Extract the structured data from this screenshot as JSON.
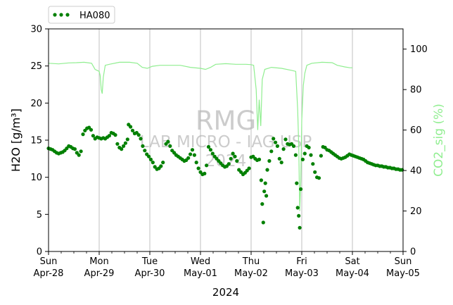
{
  "chart_data": {
    "type": "scatter",
    "xlabel": "2024",
    "ylabel_left": "H2O [g/m³]",
    "ylabel_right": "CO2_sig (%)",
    "ylim_left": [
      0,
      30
    ],
    "ylim_right": [
      0,
      110
    ],
    "y_ticks_left": [
      "0",
      "5",
      "10",
      "15",
      "20",
      "25",
      "30"
    ],
    "y_ticks_right": [
      "0",
      "20",
      "40",
      "60",
      "80",
      "100"
    ],
    "xlim": [
      "2024-04-28",
      "2024-05-05"
    ],
    "x_ticks": [
      {
        "day": "Sun",
        "date": "Apr-28"
      },
      {
        "day": "Mon",
        "date": "Apr-29"
      },
      {
        "day": "Tue",
        "date": "Apr-30"
      },
      {
        "day": "Wed",
        "date": "May-01"
      },
      {
        "day": "Thu",
        "date": "May-02"
      },
      {
        "day": "Fri",
        "date": "May-03"
      },
      {
        "day": "Sat",
        "date": "May-04"
      },
      {
        "day": "Sun",
        "date": "May-05"
      }
    ],
    "grid": "vertical at major ticks",
    "legend": {
      "position": "top-left, above plot",
      "label": "HA080"
    },
    "watermark": [
      "RMG",
      "LAB MICRO - IAG USP",
      "2024"
    ],
    "colors": {
      "h2o": "#008000",
      "co2": "#90ee90",
      "grid": "#b0b0b0",
      "watermark": "#cccccc"
    },
    "series": [
      {
        "name": "HA080",
        "axis": "left",
        "style": "dots",
        "x_unit": "days since Apr-28 00:00",
        "points": [
          [
            0.0,
            13.9
          ],
          [
            0.04,
            13.8
          ],
          [
            0.08,
            13.7
          ],
          [
            0.12,
            13.5
          ],
          [
            0.16,
            13.3
          ],
          [
            0.2,
            13.2
          ],
          [
            0.24,
            13.3
          ],
          [
            0.28,
            13.4
          ],
          [
            0.32,
            13.6
          ],
          [
            0.36,
            13.9
          ],
          [
            0.4,
            14.2
          ],
          [
            0.44,
            14.1
          ],
          [
            0.48,
            13.9
          ],
          [
            0.52,
            13.8
          ],
          [
            0.56,
            13.3
          ],
          [
            0.6,
            13.0
          ],
          [
            0.64,
            13.5
          ],
          [
            0.68,
            15.8
          ],
          [
            0.72,
            16.3
          ],
          [
            0.76,
            16.6
          ],
          [
            0.8,
            16.7
          ],
          [
            0.84,
            16.4
          ],
          [
            0.88,
            15.6
          ],
          [
            0.92,
            15.2
          ],
          [
            0.96,
            15.4
          ],
          [
            1.0,
            15.3
          ],
          [
            1.04,
            15.2
          ],
          [
            1.08,
            15.3
          ],
          [
            1.12,
            15.2
          ],
          [
            1.16,
            15.4
          ],
          [
            1.2,
            15.6
          ],
          [
            1.24,
            16.0
          ],
          [
            1.28,
            15.9
          ],
          [
            1.32,
            15.7
          ],
          [
            1.36,
            14.5
          ],
          [
            1.4,
            14.0
          ],
          [
            1.44,
            13.8
          ],
          [
            1.48,
            14.2
          ],
          [
            1.52,
            14.6
          ],
          [
            1.56,
            15.1
          ],
          [
            1.58,
            17.1
          ],
          [
            1.62,
            16.8
          ],
          [
            1.66,
            16.3
          ],
          [
            1.7,
            15.9
          ],
          [
            1.74,
            16.0
          ],
          [
            1.78,
            15.7
          ],
          [
            1.82,
            15.2
          ],
          [
            1.86,
            14.2
          ],
          [
            1.9,
            13.6
          ],
          [
            1.94,
            13.1
          ],
          [
            1.98,
            12.8
          ],
          [
            2.02,
            12.4
          ],
          [
            2.06,
            12.0
          ],
          [
            2.1,
            11.4
          ],
          [
            2.14,
            11.1
          ],
          [
            2.18,
            11.2
          ],
          [
            2.22,
            11.5
          ],
          [
            2.26,
            12.0
          ],
          [
            2.32,
            14.5
          ],
          [
            2.36,
            14.8
          ],
          [
            2.4,
            14.2
          ],
          [
            2.44,
            13.6
          ],
          [
            2.48,
            13.3
          ],
          [
            2.52,
            13.0
          ],
          [
            2.56,
            12.8
          ],
          [
            2.6,
            12.6
          ],
          [
            2.64,
            12.4
          ],
          [
            2.68,
            12.2
          ],
          [
            2.72,
            12.3
          ],
          [
            2.76,
            12.6
          ],
          [
            2.8,
            13.1
          ],
          [
            2.84,
            13.7
          ],
          [
            2.88,
            13.0
          ],
          [
            2.92,
            12.0
          ],
          [
            2.96,
            11.2
          ],
          [
            3.0,
            10.7
          ],
          [
            3.04,
            10.4
          ],
          [
            3.08,
            10.5
          ],
          [
            3.12,
            11.6
          ],
          [
            3.16,
            14.1
          ],
          [
            3.2,
            13.7
          ],
          [
            3.24,
            13.2
          ],
          [
            3.28,
            12.8
          ],
          [
            3.32,
            12.5
          ],
          [
            3.36,
            12.2
          ],
          [
            3.4,
            11.9
          ],
          [
            3.44,
            11.6
          ],
          [
            3.48,
            11.4
          ],
          [
            3.52,
            11.5
          ],
          [
            3.56,
            11.8
          ],
          [
            3.6,
            12.5
          ],
          [
            3.64,
            13.2
          ],
          [
            3.68,
            12.8
          ],
          [
            3.72,
            12.2
          ],
          [
            3.76,
            11.0
          ],
          [
            3.8,
            10.7
          ],
          [
            3.84,
            10.4
          ],
          [
            3.88,
            10.6
          ],
          [
            3.92,
            10.9
          ],
          [
            3.96,
            11.2
          ],
          [
            4.0,
            12.7
          ],
          [
            4.04,
            12.8
          ],
          [
            4.08,
            12.5
          ],
          [
            4.12,
            12.3
          ],
          [
            4.16,
            12.4
          ],
          [
            4.2,
            9.6
          ],
          [
            4.22,
            6.4
          ],
          [
            4.24,
            3.9
          ],
          [
            4.26,
            8.1
          ],
          [
            4.28,
            9.2
          ],
          [
            4.3,
            7.5
          ],
          [
            4.32,
            11.0
          ],
          [
            4.36,
            12.2
          ],
          [
            4.4,
            13.5
          ],
          [
            4.44,
            15.2
          ],
          [
            4.48,
            14.7
          ],
          [
            4.52,
            14.2
          ],
          [
            4.56,
            12.5
          ],
          [
            4.6,
            12.0
          ],
          [
            4.64,
            13.8
          ],
          [
            4.68,
            15.1
          ],
          [
            4.72,
            14.5
          ],
          [
            4.76,
            14.4
          ],
          [
            4.8,
            14.5
          ],
          [
            4.84,
            14.2
          ],
          [
            4.88,
            13.0
          ],
          [
            4.9,
            9.2
          ],
          [
            4.92,
            5.9
          ],
          [
            4.94,
            4.8
          ],
          [
            4.96,
            3.2
          ],
          [
            4.98,
            8.4
          ],
          [
            5.02,
            12.4
          ],
          [
            5.06,
            13.2
          ],
          [
            5.1,
            14.2
          ],
          [
            5.14,
            14.0
          ],
          [
            5.18,
            13.0
          ],
          [
            5.22,
            11.8
          ],
          [
            5.26,
            10.7
          ],
          [
            5.3,
            10.0
          ],
          [
            5.34,
            9.9
          ],
          [
            5.38,
            12.9
          ],
          [
            5.42,
            14.1
          ],
          [
            5.46,
            14.0
          ],
          [
            5.5,
            13.7
          ],
          [
            5.54,
            13.6
          ],
          [
            5.58,
            13.4
          ],
          [
            5.62,
            13.2
          ],
          [
            5.66,
            13.0
          ],
          [
            5.7,
            12.8
          ],
          [
            5.74,
            12.6
          ],
          [
            5.78,
            12.5
          ],
          [
            5.82,
            12.6
          ],
          [
            5.86,
            12.7
          ],
          [
            5.9,
            12.9
          ],
          [
            5.94,
            13.1
          ],
          [
            5.98,
            13.0
          ],
          [
            6.02,
            12.9
          ],
          [
            6.06,
            12.8
          ],
          [
            6.1,
            12.7
          ],
          [
            6.14,
            12.6
          ],
          [
            6.18,
            12.5
          ],
          [
            6.22,
            12.4
          ],
          [
            6.26,
            12.2
          ],
          [
            6.3,
            12.0
          ],
          [
            6.34,
            11.9
          ],
          [
            6.38,
            11.8
          ],
          [
            6.42,
            11.7
          ],
          [
            6.46,
            11.6
          ],
          [
            6.5,
            11.6
          ],
          [
            6.54,
            11.5
          ],
          [
            6.58,
            11.5
          ],
          [
            6.62,
            11.4
          ],
          [
            6.66,
            11.4
          ],
          [
            6.7,
            11.3
          ],
          [
            6.74,
            11.3
          ],
          [
            6.78,
            11.2
          ],
          [
            6.82,
            11.2
          ],
          [
            6.86,
            11.1
          ],
          [
            6.9,
            11.1
          ],
          [
            6.94,
            11.0
          ],
          [
            6.98,
            11.0
          ]
        ]
      },
      {
        "name": "CO2_sig",
        "axis": "right",
        "style": "line",
        "x_unit": "days since Apr-28 00:00",
        "points": [
          [
            0.0,
            93.0
          ],
          [
            0.2,
            92.7
          ],
          [
            0.4,
            93.2
          ],
          [
            0.55,
            93.3
          ],
          [
            0.7,
            93.5
          ],
          [
            0.85,
            93.0
          ],
          [
            0.92,
            90.0
          ],
          [
            0.96,
            89.5
          ],
          [
            1.0,
            89.0
          ],
          [
            1.02,
            87.0
          ],
          [
            1.04,
            80.0
          ],
          [
            1.06,
            78.0
          ],
          [
            1.08,
            86.0
          ],
          [
            1.12,
            92.0
          ],
          [
            1.2,
            92.5
          ],
          [
            1.4,
            93.5
          ],
          [
            1.6,
            93.5
          ],
          [
            1.75,
            93.0
          ],
          [
            1.85,
            91.0
          ],
          [
            1.95,
            90.5
          ],
          [
            2.05,
            91.5
          ],
          [
            2.2,
            92.0
          ],
          [
            2.4,
            92.0
          ],
          [
            2.6,
            92.0
          ],
          [
            2.8,
            91.0
          ],
          [
            3.0,
            90.5
          ],
          [
            3.1,
            90.0
          ],
          [
            3.2,
            91.0
          ],
          [
            3.3,
            92.5
          ],
          [
            3.5,
            92.8
          ],
          [
            3.7,
            92.5
          ],
          [
            3.9,
            92.5
          ],
          [
            4.0,
            92.3
          ],
          [
            4.05,
            92.0
          ],
          [
            4.1,
            80.0
          ],
          [
            4.13,
            60.0
          ],
          [
            4.16,
            75.0
          ],
          [
            4.19,
            62.0
          ],
          [
            4.22,
            85.0
          ],
          [
            4.27,
            90.0
          ],
          [
            4.4,
            91.0
          ],
          [
            4.6,
            90.5
          ],
          [
            4.8,
            89.5
          ],
          [
            4.88,
            89.0
          ],
          [
            4.92,
            70.0
          ],
          [
            4.94,
            52.0
          ],
          [
            4.96,
            20.0
          ],
          [
            4.98,
            35.0
          ],
          [
            5.0,
            65.0
          ],
          [
            5.03,
            82.0
          ],
          [
            5.06,
            88.0
          ],
          [
            5.1,
            92.0
          ],
          [
            5.2,
            93.0
          ],
          [
            5.4,
            93.5
          ],
          [
            5.6,
            93.3
          ],
          [
            5.7,
            92.0
          ],
          [
            5.85,
            91.2
          ],
          [
            5.95,
            90.8
          ],
          [
            6.0,
            90.8
          ]
        ]
      }
    ]
  }
}
